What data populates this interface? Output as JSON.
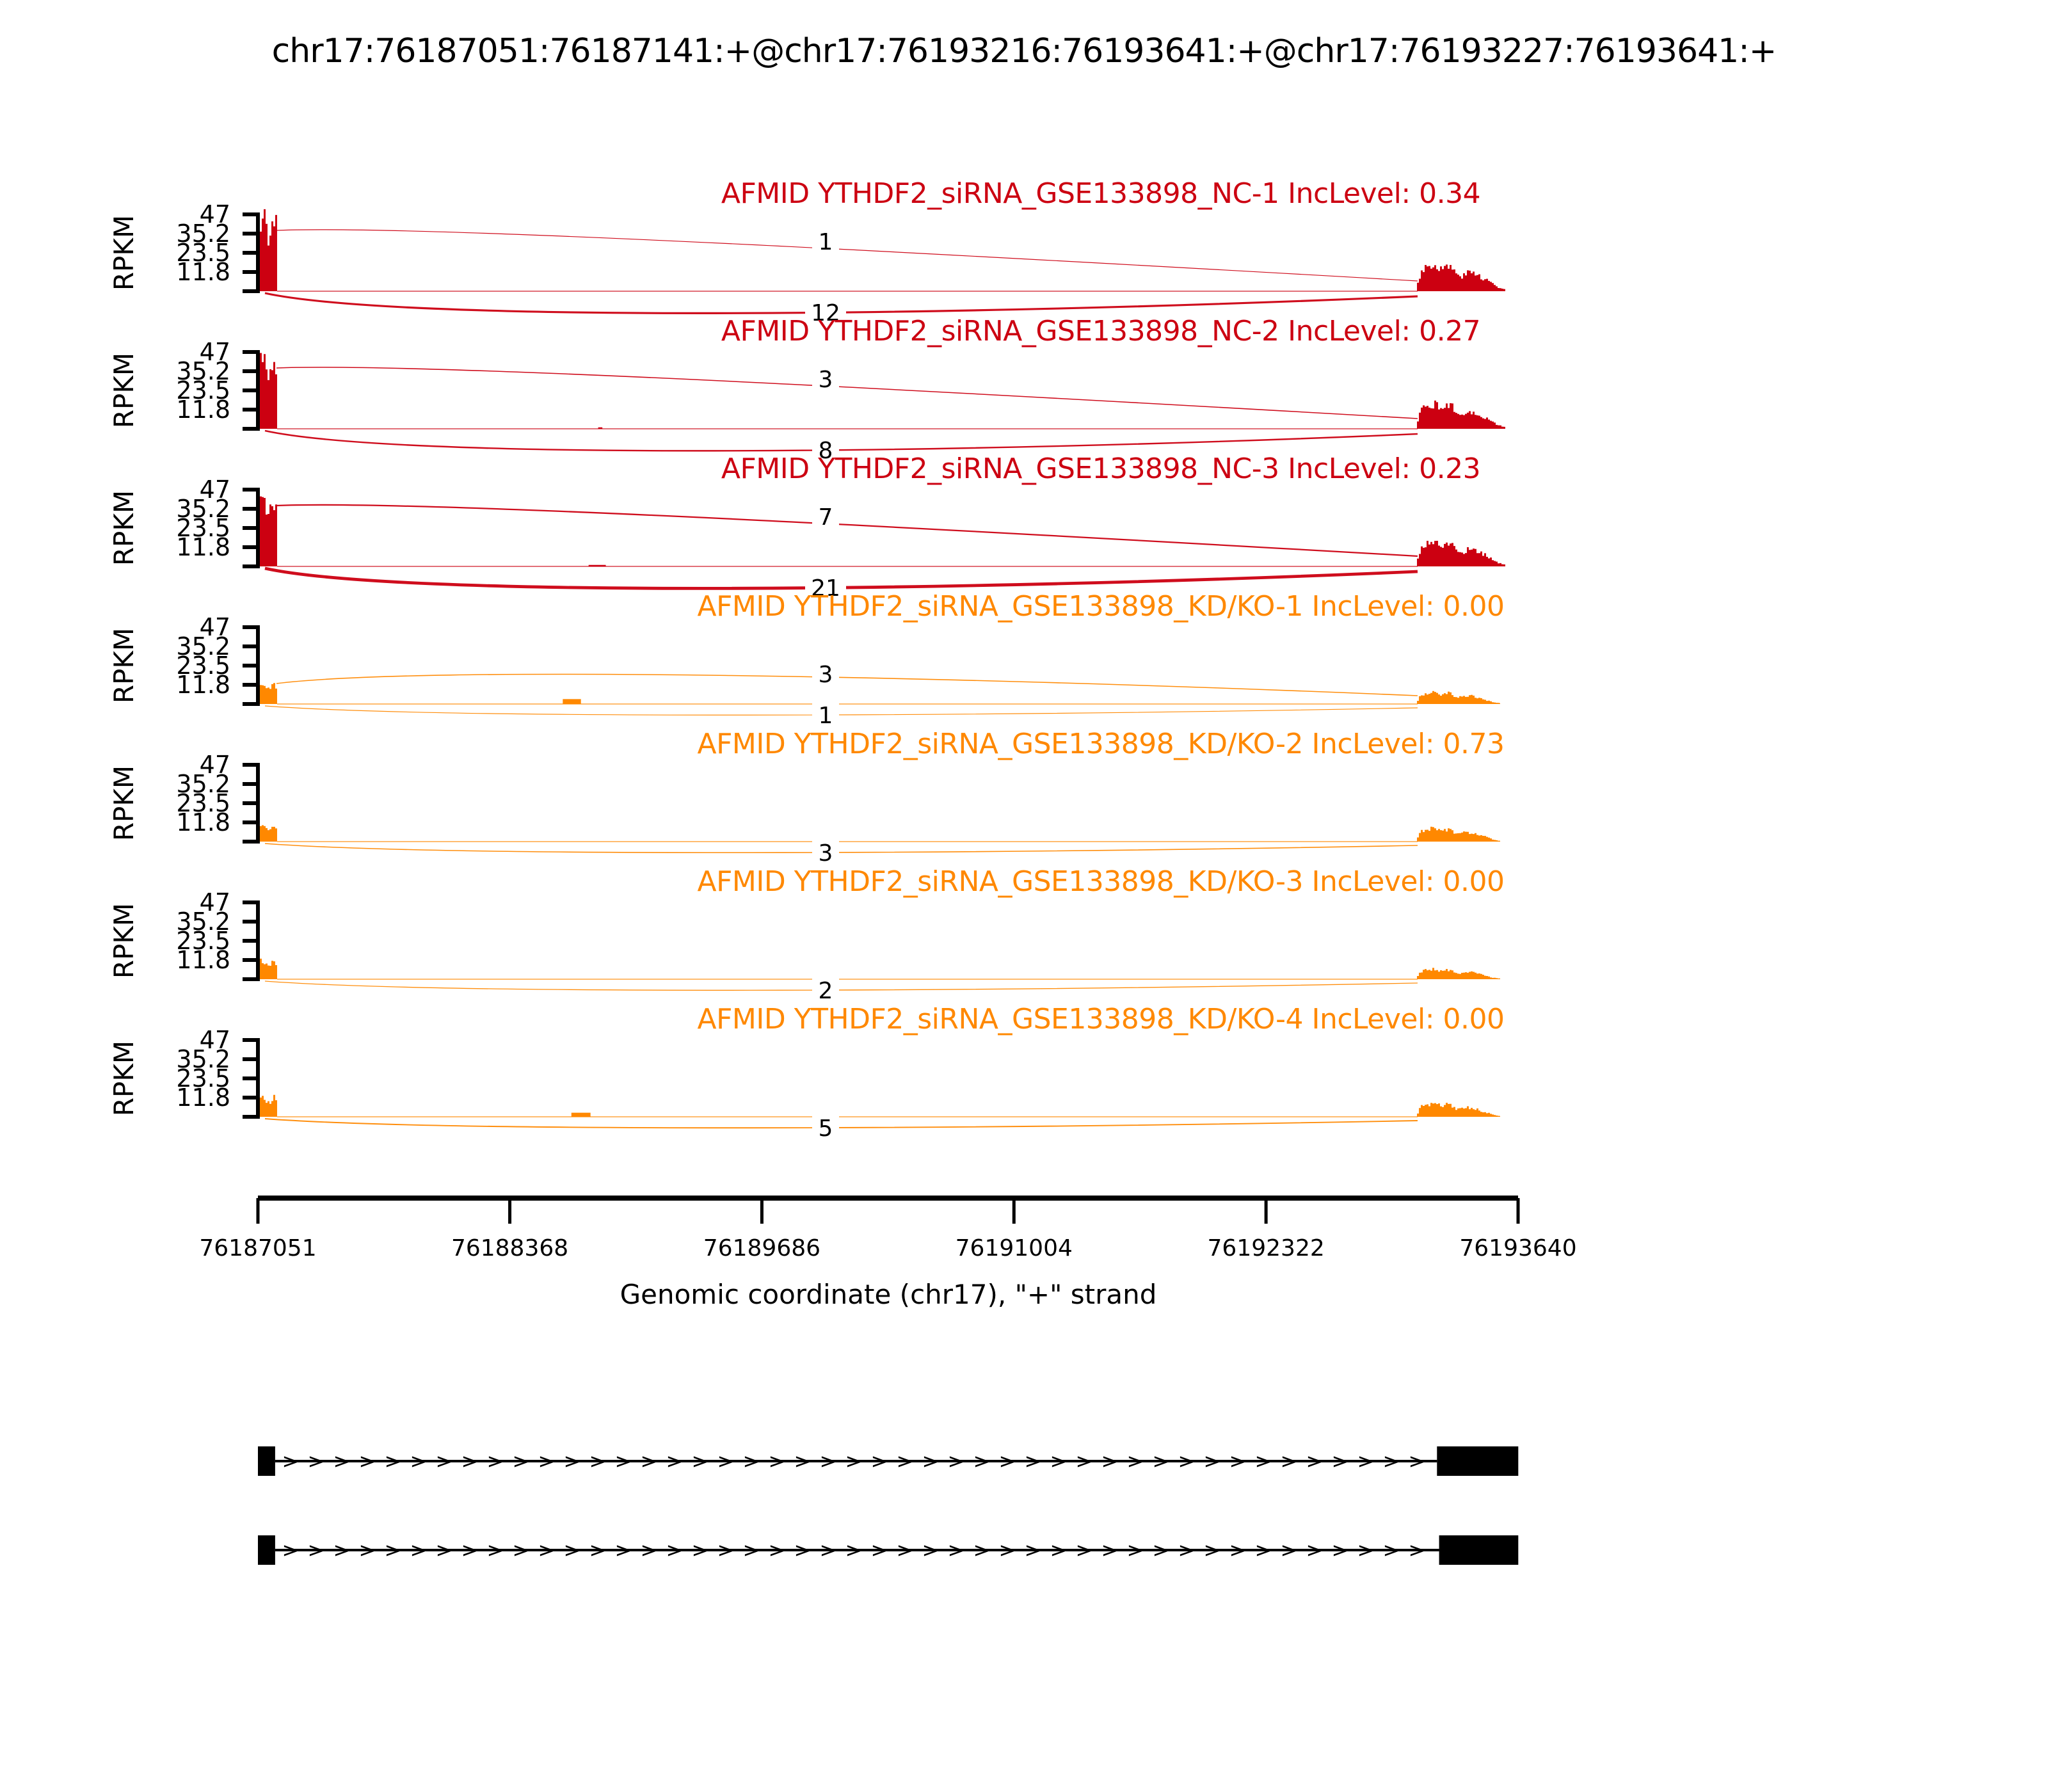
{
  "chart_data": {
    "type": "area",
    "subtype": "sashimi-plot",
    "title": "chr17:76187051:76187141:+@chr17:76193216:76193641:+@chr17:76193227:76193641:+",
    "xlabel": "Genomic coordinate (chr17), \"+\" strand",
    "ylabel": "RPKM",
    "inc_label_prefix": "IncLevel: ",
    "xlim": [
      76187051,
      76193640
    ],
    "ylim": [
      0,
      47
    ],
    "x_ticks": [
      "76187051",
      "76188368",
      "76189686",
      "76191004",
      "76192322",
      "76193640"
    ],
    "y_ticks": [
      "47",
      "35.2",
      "23.5",
      "11.8"
    ],
    "colors": {
      "group_NC": "#CC0011",
      "group_KD_KO": "#FF8800",
      "axis": "#000000",
      "count_text": "#000000"
    },
    "legend_position": "none",
    "grid": false,
    "series": [
      {
        "sample": "AFMID YTHDF2_siRNA_GSE133898_NC-1",
        "group": "NC",
        "inc_level": "0.34",
        "color": "#CC0011",
        "coverage_rpkm": {
          "left_exon": 45,
          "right_exon": 16
        },
        "junctions": [
          {
            "count": 1,
            "arc": "up"
          },
          {
            "count": 12,
            "arc": "down"
          }
        ],
        "intron_blips": []
      },
      {
        "sample": "AFMID YTHDF2_siRNA_GSE133898_NC-2",
        "group": "NC",
        "inc_level": "0.27",
        "color": "#CC0011",
        "coverage_rpkm": {
          "left_exon": 45,
          "right_exon": 15
        },
        "junctions": [
          {
            "count": 3,
            "arc": "up"
          },
          {
            "count": 8,
            "arc": "down"
          }
        ],
        "intron_blips": [
          {
            "start_bp": 76188830,
            "end_bp": 76188852,
            "rpkm": 0.9
          }
        ]
      },
      {
        "sample": "AFMID YTHDF2_siRNA_GSE133898_NC-3",
        "group": "NC",
        "inc_level": "0.23",
        "color": "#CC0011",
        "coverage_rpkm": {
          "left_exon": 45,
          "right_exon": 15
        },
        "junctions": [
          {
            "count": 7,
            "arc": "up"
          },
          {
            "count": 21,
            "arc": "down"
          }
        ],
        "intron_blips": [
          {
            "start_bp": 76188780,
            "end_bp": 76188870,
            "rpkm": 0.9
          }
        ]
      },
      {
        "sample": "AFMID YTHDF2_siRNA_GSE133898_KD/KO-1",
        "group": "KD/KO",
        "inc_level": "0.00",
        "color": "#FF8800",
        "coverage_rpkm": {
          "left_exon": 13,
          "right_exon": 7
        },
        "junctions": [
          {
            "count": 3,
            "arc": "up"
          },
          {
            "count": 1,
            "arc": "down"
          }
        ],
        "intron_blips": [
          {
            "start_bp": 76188645,
            "end_bp": 76188740,
            "rpkm": 3
          }
        ]
      },
      {
        "sample": "AFMID YTHDF2_siRNA_GSE133898_KD/KO-2",
        "group": "KD/KO",
        "inc_level": "0.73",
        "color": "#FF8800",
        "coverage_rpkm": {
          "left_exon": 11,
          "right_exon": 8
        },
        "junctions": [
          {
            "count": 3,
            "arc": "down"
          }
        ],
        "intron_blips": []
      },
      {
        "sample": "AFMID YTHDF2_siRNA_GSE133898_KD/KO-3",
        "group": "KD/KO",
        "inc_level": "0.00",
        "color": "#FF8800",
        "coverage_rpkm": {
          "left_exon": 11,
          "right_exon": 6
        },
        "junctions": [
          {
            "count": 2,
            "arc": "down"
          }
        ],
        "intron_blips": []
      },
      {
        "sample": "AFMID YTHDF2_siRNA_GSE133898_KD/KO-4",
        "group": "KD/KO",
        "inc_level": "0.00",
        "color": "#FF8800",
        "coverage_rpkm": {
          "left_exon": 13,
          "right_exon": 8
        },
        "junctions": [
          {
            "count": 5,
            "arc": "down"
          }
        ],
        "intron_blips": [
          {
            "start_bp": 76188690,
            "end_bp": 76188790,
            "rpkm": 2.5
          }
        ]
      }
    ],
    "gene_model": {
      "strand": "+",
      "arrow_glyph": ">",
      "isoforms": [
        {
          "exons": [
            [
              76187051,
              76187141
            ],
            [
              76193216,
              76193641
            ]
          ]
        },
        {
          "exons": [
            [
              76187051,
              76187141
            ],
            [
              76193227,
              76193641
            ]
          ]
        }
      ]
    }
  }
}
